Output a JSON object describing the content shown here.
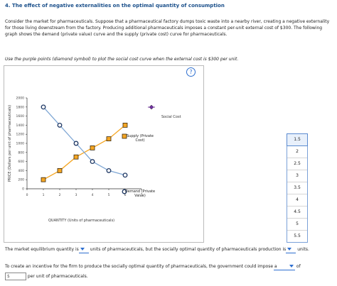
{
  "header": {
    "title": "4. The effect of negative externalities on the optimal quantity of consumption"
  },
  "intro": "Consider the market for pharmaceuticals. Suppose that a pharmaceutical factory dumps toxic waste into a nearby river, creating a negative externality for those living downstream from the factory. Producing additional pharmaceuticals imposes a constant per-unit external cost of $300. The following graph shows the demand (private value) curve and the supply (private cost) curve for pharmaceuticals.",
  "instruction": "Use the purple points (diamond symbol) to plot the social cost curve when the external cost is $300 per unit.",
  "help": "?",
  "palette": {
    "label": "Social Cost",
    "color": "#7030a0"
  },
  "chart_data": {
    "type": "line",
    "xlabel": "QUANTITY (Units of pharmaceuticals)",
    "ylabel": "PRICE (Dollars per unit of pharmaceuticals)",
    "xlim": [
      0,
      7
    ],
    "xticks": [
      0,
      1,
      2,
      3,
      4,
      5,
      6,
      7
    ],
    "ylim": [
      0,
      2000
    ],
    "yticks": [
      0,
      200,
      400,
      600,
      800,
      1000,
      1200,
      1400,
      1600,
      1800,
      2000
    ],
    "x": [
      1,
      2,
      3,
      4,
      5,
      6
    ],
    "series": [
      {
        "name": "Supply (Private Cost)",
        "color": "#f5a623",
        "marker": "square",
        "values": [
          200,
          400,
          700,
          900,
          1100,
          1400
        ]
      },
      {
        "name": "Demand (Private Value)",
        "color": "#7fa7d4",
        "marker": "circle",
        "values": [
          1800,
          1400,
          1000,
          600,
          400,
          300
        ]
      }
    ]
  },
  "dropdown": {
    "options": [
      "1.5",
      "2",
      "2.5",
      "3",
      "3.5",
      "4",
      "4.5",
      "5",
      "5.5"
    ]
  },
  "q1": {
    "a": "The market equilibrium quantity is",
    "b": "units of pharmaceuticals, but the socially optimal quantity of pharmaceuticals production is",
    "c": "units."
  },
  "q2": {
    "a": "To create an incentive for the firm to produce the socially optimal quantity of pharmaceuticals, the government could impose a",
    "b": "of",
    "c": "$",
    "d": "per unit of pharmaceuticals."
  }
}
